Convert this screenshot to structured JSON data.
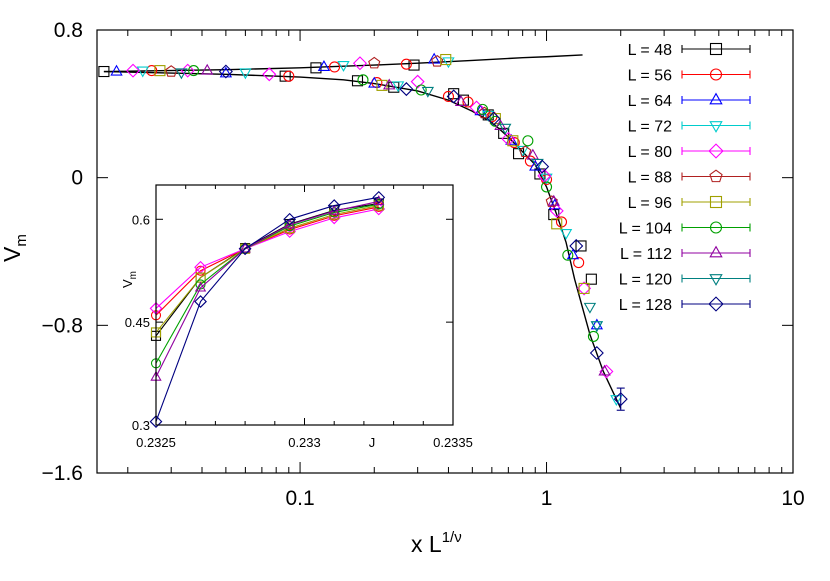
{
  "chart_data": [
    {
      "type": "line",
      "xscale": "log",
      "xlim": [
        0.015,
        10
      ],
      "ylim": [
        -1.6,
        0.8
      ],
      "xticks": [
        0.1,
        1,
        10
      ],
      "xtick_labels": [
        "0.1",
        "1",
        "10"
      ],
      "yticks": [
        -1.6,
        -0.8,
        0,
        0.8
      ],
      "ytick_labels": [
        "−1.6",
        "−0.8",
        "0",
        "0.8"
      ],
      "xlabel": "x L",
      "xlabel_sup": "1/ν",
      "ylabel": "V",
      "ylabel_sub": "m",
      "legend_position": "right",
      "grid": false,
      "scaling_curves": {
        "upper": {
          "x": [
            0.016,
            0.05,
            0.1,
            0.2,
            0.3,
            0.5,
            0.8,
            1.0,
            1.4
          ],
          "y": [
            0.575,
            0.585,
            0.595,
            0.61,
            0.62,
            0.635,
            0.65,
            0.655,
            0.665
          ]
        },
        "lower": {
          "x": [
            0.016,
            0.05,
            0.1,
            0.15,
            0.2,
            0.3,
            0.4,
            0.5,
            0.6,
            0.7,
            0.8,
            0.9,
            1.0,
            1.1,
            1.2,
            1.3,
            1.5,
            1.7,
            2.0
          ],
          "y": [
            0.575,
            0.56,
            0.545,
            0.53,
            0.51,
            0.47,
            0.42,
            0.36,
            0.3,
            0.22,
            0.14,
            0.07,
            -0.05,
            -0.2,
            -0.35,
            -0.55,
            -0.85,
            -1.05,
            -1.25
          ]
        }
      },
      "series": [
        {
          "name": "L = 48",
          "marker": "square",
          "color": "#000000",
          "x": [
            0.016,
            0.087,
            0.116,
            0.171,
            0.24,
            0.29,
            0.42,
            0.46,
            0.58,
            0.67,
            0.77,
            0.94,
            1.07,
            1.38,
            1.52
          ],
          "y": [
            0.575,
            0.55,
            0.595,
            0.525,
            0.49,
            0.61,
            0.455,
            0.42,
            0.34,
            0.24,
            0.13,
            0.02,
            -0.2,
            -0.37,
            -0.55
          ]
        },
        {
          "name": "L = 56",
          "marker": "circle",
          "color": "#ff0000",
          "x": [
            0.025,
            0.09,
            0.138,
            0.205,
            0.27,
            0.4,
            0.48,
            0.6,
            0.74,
            0.86,
            1.0,
            1.15,
            1.35
          ],
          "y": [
            0.58,
            0.55,
            0.6,
            0.515,
            0.615,
            0.44,
            0.41,
            0.33,
            0.19,
            0.09,
            -0.01,
            -0.24,
            -0.46
          ]
        },
        {
          "name": "L = 64",
          "marker": "triangle-up",
          "color": "#0000ff",
          "x": [
            0.018,
            0.05,
            0.125,
            0.2,
            0.35,
            0.54,
            0.72,
            0.9,
            1.08,
            1.28,
            1.6
          ],
          "y": [
            0.575,
            0.565,
            0.6,
            0.51,
            0.64,
            0.36,
            0.2,
            0.06,
            -0.15,
            -0.42,
            -0.8
          ]
        },
        {
          "name": "L = 72",
          "marker": "triangle-down",
          "color": "#00cccc",
          "x": [
            0.023,
            0.06,
            0.15,
            0.25,
            0.4,
            0.58,
            0.8,
            1.0,
            1.2,
            1.6,
            1.92
          ],
          "y": [
            0.58,
            0.57,
            0.61,
            0.5,
            0.63,
            0.34,
            0.15,
            0.0,
            -0.3,
            -0.8,
            -1.2
          ]
        },
        {
          "name": "L = 80",
          "marker": "diamond",
          "color": "#ff00ff",
          "x": [
            0.021,
            0.035,
            0.075,
            0.175,
            0.3,
            0.52,
            0.7,
            0.98,
            1.1,
            1.42,
            1.75
          ],
          "y": [
            0.58,
            0.58,
            0.56,
            0.62,
            0.52,
            0.38,
            0.21,
            0.01,
            -0.18,
            -0.6,
            -1.05
          ]
        },
        {
          "name": "L = 88",
          "marker": "pentagon",
          "color": "#b02020",
          "x": [
            0.03,
            0.2,
            0.36,
            0.56,
            0.82,
            1.05
          ],
          "y": [
            0.575,
            0.62,
            0.63,
            0.35,
            0.14,
            -0.13
          ]
        },
        {
          "name": "L = 96",
          "marker": "square",
          "color": "#a0a000",
          "x": [
            0.027,
            0.215,
            0.39,
            0.62,
            0.73,
            1.1,
            1.42
          ],
          "y": [
            0.58,
            0.5,
            0.64,
            0.32,
            0.2,
            -0.25,
            -0.6
          ]
        },
        {
          "name": "L = 104",
          "marker": "circle",
          "color": "#00a000",
          "x": [
            0.037,
            0.18,
            0.31,
            0.55,
            0.62,
            0.84,
            1.0,
            1.22,
            1.55
          ],
          "y": [
            0.58,
            0.53,
            0.475,
            0.37,
            0.305,
            0.2,
            -0.05,
            -0.42,
            -0.86
          ]
        },
        {
          "name": "L = 112",
          "marker": "triangle-up",
          "color": "#9000a0",
          "x": [
            0.042,
            0.23,
            0.45,
            0.65,
            0.88,
            1.07,
            1.72
          ],
          "y": [
            0.58,
            0.5,
            0.41,
            0.28,
            0.12,
            -0.13,
            -1.05
          ]
        },
        {
          "name": "L = 120",
          "marker": "triangle-down",
          "color": "#008080",
          "x": [
            0.033,
            0.33,
            0.68,
            0.92,
            1.5,
            1.6
          ],
          "y": [
            0.57,
            0.47,
            0.27,
            0.08,
            -0.7,
            -0.8
          ]
        },
        {
          "name": "L = 128",
          "marker": "diamond",
          "color": "#000080",
          "x": [
            0.05,
            0.27,
            0.42,
            0.61,
            0.96,
            1.32,
            1.6
          ],
          "y": [
            0.575,
            0.48,
            0.44,
            0.32,
            0.06,
            -0.37,
            -0.95
          ]
        }
      ],
      "terminal_point": {
        "x": 2.0,
        "y": -1.2,
        "yerr": 0.06
      }
    },
    {
      "type": "line",
      "xlim": [
        0.2325,
        0.2335
      ],
      "ylim": [
        0.3,
        0.65
      ],
      "xticks": [
        0.2325,
        0.233,
        0.2335
      ],
      "xtick_labels": [
        "0.2325",
        "0.233",
        "0.2335"
      ],
      "yticks": [
        0.3,
        0.45,
        0.6
      ],
      "ytick_labels": [
        "0.3",
        "0.45",
        "0.6"
      ],
      "xlabel": "J",
      "ylabel": "V",
      "ylabel_sub": "m",
      "x": [
        0.2325,
        0.23265,
        0.2328,
        0.23295,
        0.2331,
        0.23325
      ],
      "series": [
        {
          "name": "L = 48",
          "marker": "square",
          "color": "#000000",
          "y": [
            0.43,
            0.515,
            0.558,
            0.593,
            0.613,
            0.623
          ]
        },
        {
          "name": "L = 64",
          "marker": "circle",
          "color": "#ff0000",
          "y": [
            0.46,
            0.525,
            0.557,
            0.585,
            0.605,
            0.618
          ]
        },
        {
          "name": "L = 80",
          "marker": "diamond",
          "color": "#ff00ff",
          "y": [
            0.47,
            0.53,
            0.557,
            0.582,
            0.602,
            0.615
          ]
        },
        {
          "name": "L = 96",
          "marker": "square",
          "color": "#a0a000",
          "y": [
            0.435,
            0.515,
            0.557,
            0.587,
            0.607,
            0.62
          ]
        },
        {
          "name": "L = 104",
          "marker": "circle",
          "color": "#00a000",
          "y": [
            0.39,
            0.505,
            0.557,
            0.59,
            0.61,
            0.622
          ]
        },
        {
          "name": "L = 112",
          "marker": "triangle-up",
          "color": "#9000a0",
          "y": [
            0.37,
            0.5,
            0.557,
            0.592,
            0.612,
            0.626
          ]
        },
        {
          "name": "L = 128",
          "marker": "diamond",
          "color": "#000080",
          "y": [
            0.305,
            0.48,
            0.557,
            0.6,
            0.62,
            0.632
          ]
        }
      ]
    }
  ]
}
